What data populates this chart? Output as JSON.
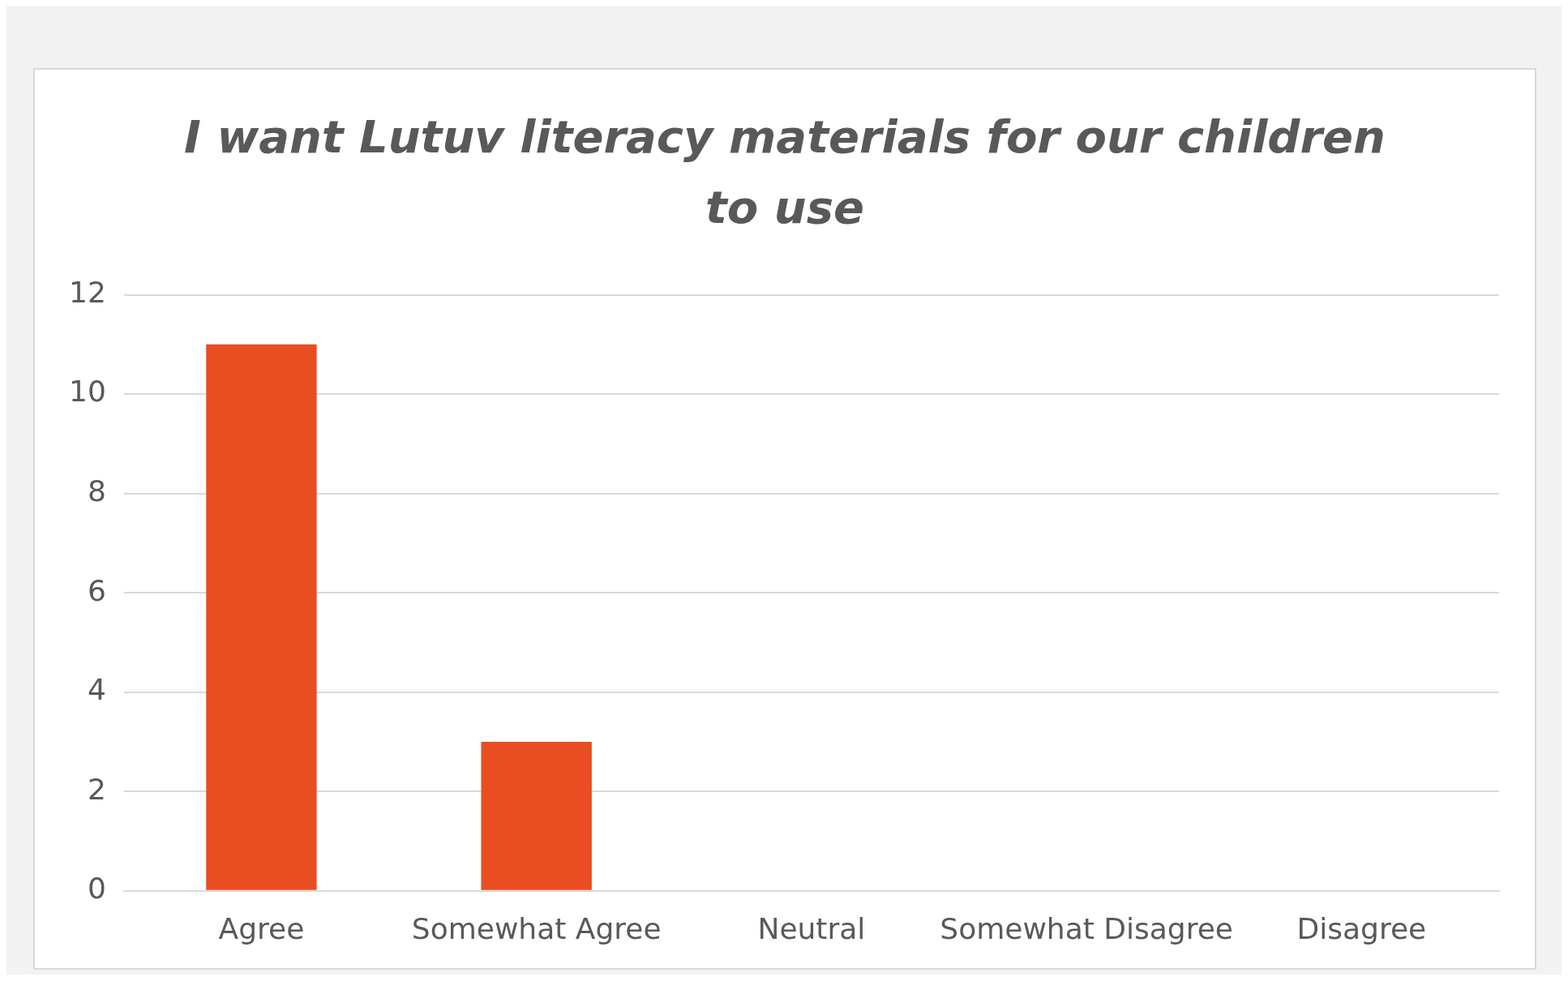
{
  "chart_data": {
    "type": "bar",
    "title": "I want Lutuv literacy materials for our children to use",
    "categories": [
      "Agree",
      "Somewhat Agree",
      "Neutral",
      "Somewhat Disagree",
      "Disagree"
    ],
    "values": [
      11,
      3,
      0,
      0,
      0
    ],
    "color": "#e84e22",
    "ylim": [
      0,
      12
    ],
    "yticks": [
      0,
      2,
      4,
      6,
      8,
      10,
      12
    ],
    "grid": "y",
    "legend": false
  }
}
